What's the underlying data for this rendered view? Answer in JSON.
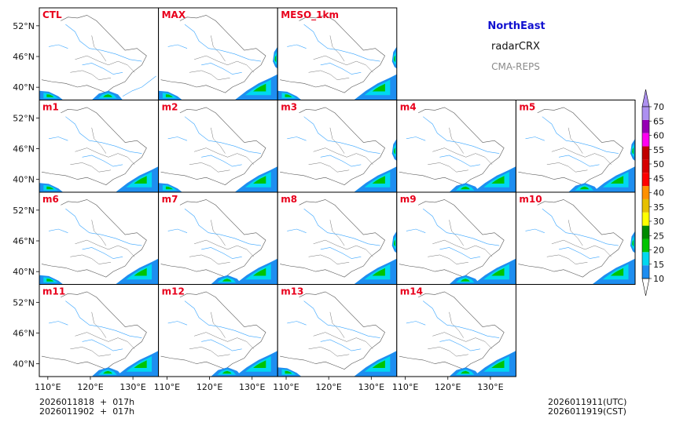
{
  "chart_data": {
    "type": "map-panels",
    "variable": "radarCRX",
    "region": "NorthEast",
    "system": "CMA-REPS",
    "panels": [
      {
        "name": "CTL",
        "row": 0,
        "col": 0,
        "echo": [
          "s",
          "sw"
        ]
      },
      {
        "name": "MAX",
        "row": 0,
        "col": 1,
        "echo": [
          "se",
          "e",
          "sw"
        ]
      },
      {
        "name": "MESO_1km",
        "row": 0,
        "col": 2,
        "echo": [
          "se",
          "sw",
          "e"
        ]
      },
      {
        "name": "m1",
        "row": 1,
        "col": 0,
        "echo": [
          "sw",
          "se"
        ]
      },
      {
        "name": "m2",
        "row": 1,
        "col": 1,
        "echo": [
          "se",
          "sw"
        ]
      },
      {
        "name": "m3",
        "row": 1,
        "col": 2,
        "echo": [
          "se",
          "e"
        ]
      },
      {
        "name": "m4",
        "row": 1,
        "col": 3,
        "echo": [
          "s",
          "se"
        ]
      },
      {
        "name": "m5",
        "row": 1,
        "col": 4,
        "echo": [
          "s",
          "se",
          "e"
        ]
      },
      {
        "name": "m6",
        "row": 2,
        "col": 0,
        "echo": [
          "se",
          "sw"
        ]
      },
      {
        "name": "m7",
        "row": 2,
        "col": 1,
        "echo": [
          "s",
          "se"
        ]
      },
      {
        "name": "m8",
        "row": 2,
        "col": 2,
        "echo": [
          "se",
          "e"
        ]
      },
      {
        "name": "m9",
        "row": 2,
        "col": 3,
        "echo": [
          "s",
          "se"
        ]
      },
      {
        "name": "m10",
        "row": 2,
        "col": 4,
        "echo": [
          "se",
          "e"
        ]
      },
      {
        "name": "m11",
        "row": 3,
        "col": 0,
        "echo": [
          "s",
          "se"
        ]
      },
      {
        "name": "m12",
        "row": 3,
        "col": 1,
        "echo": [
          "s",
          "se"
        ]
      },
      {
        "name": "m13",
        "row": 3,
        "col": 2,
        "echo": [
          "se",
          "sw"
        ]
      },
      {
        "name": "m14",
        "row": 3,
        "col": 3,
        "echo": [
          "s",
          "se"
        ]
      }
    ],
    "lat_ticks": [
      "52°N",
      "46°N",
      "40°N"
    ],
    "lat_values": [
      52,
      46,
      40
    ],
    "lon_ticks": [
      "110°E",
      "120°E",
      "130°E"
    ],
    "lon_values": [
      110,
      120,
      130
    ],
    "lon_range": [
      108,
      136
    ],
    "lat_range": [
      37.5,
      55.5
    ],
    "colorbar": {
      "levels": [
        10,
        15,
        20,
        25,
        30,
        35,
        40,
        45,
        50,
        55,
        60,
        65,
        70
      ],
      "labels": [
        "10",
        "15",
        "20",
        "25",
        "30",
        "35",
        "40",
        "45",
        "50",
        "55",
        "60",
        "65",
        "70"
      ],
      "colors": [
        "#1e8ef0",
        "#00d8f0",
        "#00c400",
        "#008a00",
        "#ffff00",
        "#e6c000",
        "#ff9000",
        "#ff0000",
        "#d60000",
        "#c00000",
        "#ff00f0",
        "#9600b4",
        "#ad90f0"
      ],
      "extend": "both"
    }
  },
  "info": {
    "region": "NorthEast",
    "product": "radarCRX",
    "system": "CMA-REPS"
  },
  "footer": {
    "init_utc": "2026011818  +  017h",
    "init_cst": "2026011902  +  017h",
    "valid_utc": "2026011911(UTC)",
    "valid_cst": "2026011919(CST)"
  }
}
